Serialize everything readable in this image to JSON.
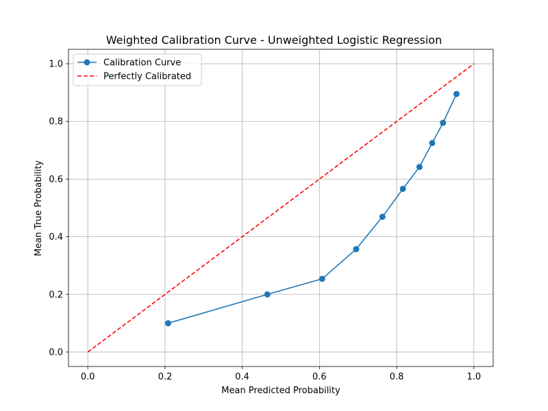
{
  "chart_data": {
    "type": "line",
    "title": "Weighted Calibration Curve - Unweighted Logistic Regression",
    "xlabel": "Mean Predicted Probability",
    "ylabel": "Mean True Probability",
    "xlim": [
      -0.05,
      1.05
    ],
    "ylim": [
      -0.05,
      1.05
    ],
    "xticks": [
      0.0,
      0.2,
      0.4,
      0.6,
      0.8,
      1.0
    ],
    "xtick_labels": [
      "0.0",
      "0.2",
      "0.4",
      "0.6",
      "0.8",
      "1.0"
    ],
    "yticks": [
      0.0,
      0.2,
      0.4,
      0.6,
      0.8,
      1.0
    ],
    "ytick_labels": [
      "0.0",
      "0.2",
      "0.4",
      "0.6",
      "0.8",
      "1.0"
    ],
    "grid": true,
    "legend_position": "upper-left",
    "series": [
      {
        "name": "Calibration Curve",
        "style": "solid-line-circle-markers",
        "color": "#1f77b4",
        "x": [
          0.208,
          0.465,
          0.607,
          0.695,
          0.763,
          0.816,
          0.859,
          0.892,
          0.92,
          0.955
        ],
        "y": [
          0.1,
          0.2,
          0.254,
          0.357,
          0.469,
          0.566,
          0.642,
          0.725,
          0.795,
          0.895
        ]
      },
      {
        "name": "Perfectly Calibrated",
        "style": "dashed-line",
        "color": "#ff0000",
        "x": [
          0.0,
          1.0
        ],
        "y": [
          0.0,
          1.0
        ]
      }
    ]
  }
}
